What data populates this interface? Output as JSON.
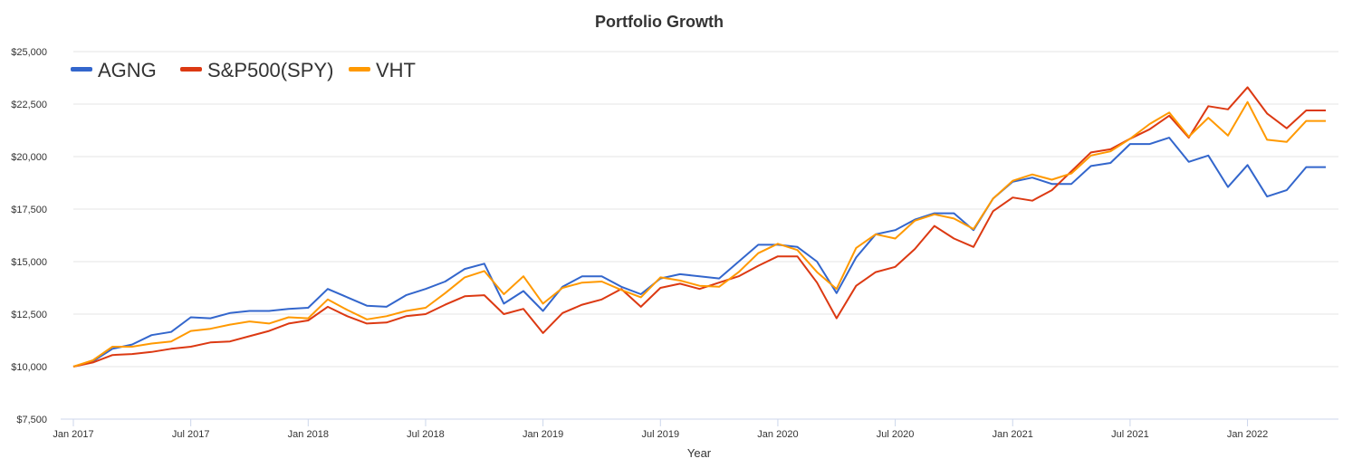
{
  "chart_data": {
    "type": "line",
    "title": "Portfolio Growth",
    "xlabel": "Year",
    "ylabel": "",
    "ylim": [
      7500,
      25000
    ],
    "yticks": [
      7500,
      10000,
      12500,
      15000,
      17500,
      20000,
      22500,
      25000
    ],
    "ytick_labels": [
      "$7,500",
      "$10,000",
      "$12,500",
      "$15,000",
      "$17,500",
      "$20,000",
      "$22,500",
      "$25,000"
    ],
    "xticks": [
      "2017-01",
      "2017-07",
      "2018-01",
      "2018-07",
      "2019-01",
      "2019-07",
      "2020-01",
      "2020-07",
      "2021-01",
      "2021-07",
      "2022-01"
    ],
    "xtick_labels": [
      "Jan 2017",
      "Jul 2017",
      "Jan 2018",
      "Jul 2018",
      "Jan 2019",
      "Jul 2019",
      "Jan 2020",
      "Jul 2020",
      "Jan 2021",
      "Jul 2021",
      "Jan 2022"
    ],
    "xlim": [
      "2017-01",
      "2022-05"
    ],
    "grid": true,
    "legend_position": "top-left",
    "x": [
      "2017-01",
      "2017-02",
      "2017-03",
      "2017-04",
      "2017-05",
      "2017-06",
      "2017-07",
      "2017-08",
      "2017-09",
      "2017-10",
      "2017-11",
      "2017-12",
      "2018-01",
      "2018-02",
      "2018-03",
      "2018-04",
      "2018-05",
      "2018-06",
      "2018-07",
      "2018-08",
      "2018-09",
      "2018-10",
      "2018-11",
      "2018-12",
      "2019-01",
      "2019-02",
      "2019-03",
      "2019-04",
      "2019-05",
      "2019-06",
      "2019-07",
      "2019-08",
      "2019-09",
      "2019-10",
      "2019-11",
      "2019-12",
      "2020-01",
      "2020-02",
      "2020-03",
      "2020-04",
      "2020-05",
      "2020-06",
      "2020-07",
      "2020-08",
      "2020-09",
      "2020-10",
      "2020-11",
      "2020-12",
      "2021-01",
      "2021-02",
      "2021-03",
      "2021-04",
      "2021-05",
      "2021-06",
      "2021-07",
      "2021-08",
      "2021-09",
      "2021-10",
      "2021-11",
      "2021-12",
      "2022-01",
      "2022-02",
      "2022-03",
      "2022-04",
      "2022-05"
    ],
    "series": [
      {
        "name": "AGNG",
        "color": "#3366cc",
        "values": [
          10000,
          10250,
          10850,
          11050,
          11500,
          11650,
          12350,
          12300,
          12550,
          12650,
          12650,
          12750,
          12800,
          13700,
          13300,
          12900,
          12850,
          13400,
          13700,
          14050,
          14650,
          14900,
          13000,
          13600,
          12650,
          13800,
          14300,
          14300,
          13800,
          13450,
          14200,
          14400,
          14300,
          14200,
          15000,
          15800,
          15800,
          15700,
          15000,
          13500,
          15200,
          16300,
          16500,
          17000,
          17300,
          17300,
          16500,
          18000,
          18800,
          19000,
          18700,
          18700,
          19550,
          19700,
          20600,
          20600,
          20900,
          19750,
          20050,
          18550,
          19600,
          18100,
          18400,
          19500,
          19500
        ]
      },
      {
        "name": "S&P500(SPY)",
        "color": "#dc3912",
        "values": [
          10000,
          10200,
          10550,
          10600,
          10700,
          10850,
          10950,
          11150,
          11200,
          11450,
          11700,
          12050,
          12200,
          12850,
          12400,
          12050,
          12100,
          12400,
          12500,
          12950,
          13350,
          13400,
          12500,
          12750,
          11600,
          12550,
          12950,
          13200,
          13700,
          12850,
          13750,
          13950,
          13700,
          14000,
          14300,
          14800,
          15250,
          15250,
          14000,
          12300,
          13850,
          14500,
          14750,
          15600,
          16700,
          16100,
          15700,
          17400,
          18050,
          17900,
          18400,
          19300,
          20200,
          20350,
          20850,
          21300,
          21950,
          20900,
          22400,
          22250,
          23300,
          22050,
          21350,
          22200,
          22200
        ]
      },
      {
        "name": "VHT",
        "color": "#ff9900",
        "values": [
          10000,
          10300,
          10950,
          10950,
          11100,
          11200,
          11700,
          11800,
          12000,
          12150,
          12050,
          12350,
          12300,
          13200,
          12700,
          12250,
          12400,
          12650,
          12800,
          13500,
          14250,
          14550,
          13450,
          14300,
          13000,
          13750,
          14000,
          14050,
          13650,
          13300,
          14250,
          14100,
          13850,
          13800,
          14500,
          15400,
          15850,
          15550,
          14500,
          13700,
          15650,
          16300,
          16100,
          16950,
          17250,
          17050,
          16550,
          18000,
          18850,
          19150,
          18900,
          19200,
          20050,
          20250,
          20850,
          21550,
          22100,
          20950,
          21850,
          21000,
          22600,
          20800,
          20700,
          21700,
          21700
        ]
      }
    ]
  }
}
